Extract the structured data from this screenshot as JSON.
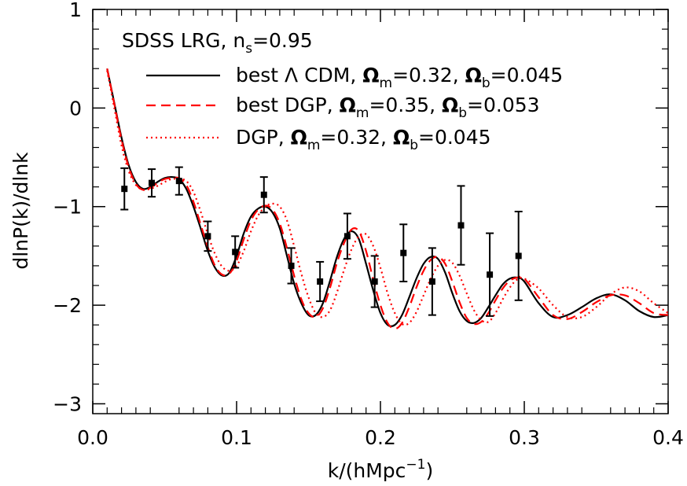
{
  "chart_data": {
    "type": "line",
    "title": "",
    "xlabel": "k/(hMpc⁻¹)",
    "xlabel_parts": {
      "base": "k/(hMpc",
      "sup": "−1",
      "close": ")"
    },
    "ylabel": "dlnP(k)/dlnk",
    "xlim": [
      0.0,
      0.4
    ],
    "ylim": [
      -3.1,
      1.0
    ],
    "xticks": [
      0.0,
      0.1,
      0.2,
      0.3,
      0.4
    ],
    "xtick_labels": [
      "0.0",
      "0.1",
      "0.2",
      "0.3",
      "0.4"
    ],
    "yticks": [
      -3,
      -2,
      -1,
      0,
      1
    ],
    "ytick_labels": [
      "−3",
      "−2",
      "−1",
      "0",
      "1"
    ],
    "grid": false,
    "legend_position": "top-right",
    "annotation": {
      "text": "SDSS LRG, n",
      "sub": "s",
      "rest": "=0.95"
    },
    "legend": [
      {
        "prefix": "best Λ CDM, ",
        "om_label": "Ω",
        "om_sub": "m",
        "om_val": "=0.32, ",
        "ob_label": "Ω",
        "ob_sub": "b",
        "ob_val": "=0.045"
      },
      {
        "prefix": "best DGP, ",
        "om_label": "Ω",
        "om_sub": "m",
        "om_val": "=0.35, ",
        "ob_label": "Ω",
        "ob_sub": "b",
        "ob_val": "=0.053"
      },
      {
        "prefix": "DGP, ",
        "om_label": "Ω",
        "om_sub": "m",
        "om_val": "=0.32, ",
        "ob_label": "Ω",
        "ob_sub": "b",
        "ob_val": "=0.045"
      }
    ],
    "series": [
      {
        "style": "solid",
        "color": "#000000",
        "x": [
          0.01,
          0.015,
          0.02,
          0.025,
          0.03,
          0.035,
          0.04,
          0.045,
          0.05,
          0.055,
          0.06,
          0.065,
          0.07,
          0.075,
          0.08,
          0.085,
          0.09,
          0.095,
          0.1,
          0.105,
          0.11,
          0.115,
          0.12,
          0.125,
          0.13,
          0.135,
          0.14,
          0.145,
          0.15,
          0.155,
          0.16,
          0.165,
          0.17,
          0.175,
          0.18,
          0.185,
          0.19,
          0.195,
          0.2,
          0.205,
          0.21,
          0.215,
          0.22,
          0.225,
          0.23,
          0.235,
          0.24,
          0.245,
          0.25,
          0.255,
          0.26,
          0.265,
          0.27,
          0.275,
          0.28,
          0.285,
          0.29,
          0.295,
          0.3,
          0.31,
          0.32,
          0.33,
          0.34,
          0.35,
          0.36,
          0.37,
          0.38,
          0.39,
          0.4
        ],
        "y": [
          0.4,
          0.05,
          -0.3,
          -0.58,
          -0.75,
          -0.82,
          -0.8,
          -0.75,
          -0.71,
          -0.7,
          -0.72,
          -0.82,
          -1.0,
          -1.22,
          -1.45,
          -1.62,
          -1.7,
          -1.67,
          -1.5,
          -1.27,
          -1.1,
          -1.02,
          -1.0,
          -1.06,
          -1.22,
          -1.5,
          -1.78,
          -1.98,
          -2.1,
          -2.1,
          -1.98,
          -1.75,
          -1.5,
          -1.32,
          -1.25,
          -1.33,
          -1.58,
          -1.85,
          -2.08,
          -2.2,
          -2.2,
          -2.1,
          -1.92,
          -1.73,
          -1.58,
          -1.51,
          -1.53,
          -1.67,
          -1.88,
          -2.06,
          -2.16,
          -2.18,
          -2.13,
          -2.02,
          -1.9,
          -1.79,
          -1.73,
          -1.72,
          -1.76,
          -1.98,
          -2.12,
          -2.1,
          -2.02,
          -1.93,
          -1.89,
          -1.95,
          -2.06,
          -2.12,
          -2.1
        ]
      },
      {
        "style": "dashed",
        "color": "#ff0000",
        "x": [
          0.01,
          0.015,
          0.02,
          0.025,
          0.03,
          0.035,
          0.04,
          0.045,
          0.05,
          0.055,
          0.06,
          0.065,
          0.07,
          0.075,
          0.08,
          0.085,
          0.09,
          0.095,
          0.1,
          0.105,
          0.11,
          0.115,
          0.12,
          0.125,
          0.13,
          0.135,
          0.14,
          0.145,
          0.15,
          0.155,
          0.16,
          0.165,
          0.17,
          0.175,
          0.18,
          0.185,
          0.19,
          0.195,
          0.2,
          0.205,
          0.21,
          0.215,
          0.22,
          0.225,
          0.23,
          0.235,
          0.24,
          0.245,
          0.25,
          0.255,
          0.26,
          0.265,
          0.27,
          0.275,
          0.28,
          0.285,
          0.29,
          0.295,
          0.3,
          0.31,
          0.32,
          0.33,
          0.34,
          0.35,
          0.36,
          0.37,
          0.38,
          0.39,
          0.4
        ],
        "y": [
          0.4,
          0.04,
          -0.32,
          -0.6,
          -0.77,
          -0.83,
          -0.81,
          -0.76,
          -0.72,
          -0.71,
          -0.71,
          -0.78,
          -0.95,
          -1.18,
          -1.41,
          -1.6,
          -1.69,
          -1.68,
          -1.55,
          -1.33,
          -1.14,
          -1.03,
          -0.99,
          -1.03,
          -1.17,
          -1.42,
          -1.7,
          -1.94,
          -2.08,
          -2.12,
          -2.03,
          -1.82,
          -1.56,
          -1.36,
          -1.23,
          -1.25,
          -1.45,
          -1.74,
          -2.0,
          -2.18,
          -2.24,
          -2.18,
          -2.02,
          -1.82,
          -1.65,
          -1.54,
          -1.51,
          -1.58,
          -1.76,
          -1.97,
          -2.13,
          -2.19,
          -2.17,
          -2.08,
          -1.95,
          -1.83,
          -1.75,
          -1.72,
          -1.73,
          -1.92,
          -2.1,
          -2.14,
          -2.07,
          -1.97,
          -1.9,
          -1.9,
          -1.98,
          -2.08,
          -2.1
        ]
      },
      {
        "style": "dotted",
        "color": "#ff0000",
        "x": [
          0.01,
          0.015,
          0.02,
          0.025,
          0.03,
          0.035,
          0.04,
          0.045,
          0.05,
          0.055,
          0.06,
          0.065,
          0.07,
          0.075,
          0.08,
          0.085,
          0.09,
          0.095,
          0.1,
          0.105,
          0.11,
          0.115,
          0.12,
          0.125,
          0.13,
          0.135,
          0.14,
          0.145,
          0.15,
          0.155,
          0.16,
          0.165,
          0.17,
          0.175,
          0.18,
          0.185,
          0.19,
          0.195,
          0.2,
          0.205,
          0.21,
          0.215,
          0.22,
          0.225,
          0.23,
          0.235,
          0.24,
          0.245,
          0.25,
          0.255,
          0.26,
          0.265,
          0.27,
          0.275,
          0.28,
          0.285,
          0.29,
          0.295,
          0.3,
          0.31,
          0.32,
          0.33,
          0.34,
          0.35,
          0.36,
          0.37,
          0.38,
          0.39,
          0.4
        ],
        "y": [
          0.38,
          0.0,
          -0.38,
          -0.64,
          -0.78,
          -0.83,
          -0.82,
          -0.79,
          -0.75,
          -0.72,
          -0.72,
          -0.74,
          -0.85,
          -1.05,
          -1.28,
          -1.48,
          -1.61,
          -1.65,
          -1.6,
          -1.45,
          -1.25,
          -1.09,
          -1.0,
          -0.97,
          -1.0,
          -1.14,
          -1.4,
          -1.68,
          -1.92,
          -2.08,
          -2.12,
          -2.05,
          -1.86,
          -1.63,
          -1.43,
          -1.3,
          -1.28,
          -1.4,
          -1.62,
          -1.88,
          -2.08,
          -2.19,
          -2.18,
          -2.07,
          -1.9,
          -1.73,
          -1.6,
          -1.54,
          -1.57,
          -1.7,
          -1.88,
          -2.05,
          -2.15,
          -2.17,
          -2.08,
          -1.94,
          -1.82,
          -1.74,
          -1.73,
          -1.83,
          -2.0,
          -2.12,
          -2.12,
          -2.02,
          -1.89,
          -1.82,
          -1.86,
          -1.98,
          -2.08
        ]
      }
    ],
    "points": {
      "x": [
        0.022,
        0.041,
        0.06,
        0.08,
        0.099,
        0.119,
        0.138,
        0.158,
        0.177,
        0.196,
        0.216,
        0.236,
        0.256,
        0.276,
        0.296
      ],
      "y": [
        -0.82,
        -0.76,
        -0.74,
        -1.3,
        -1.46,
        -0.88,
        -1.6,
        -1.76,
        -1.3,
        -1.76,
        -1.47,
        -1.76,
        -1.19,
        -1.69,
        -1.5
      ],
      "err": [
        0.21,
        0.14,
        0.14,
        0.15,
        0.16,
        0.18,
        0.18,
        0.2,
        0.23,
        0.26,
        0.29,
        0.34,
        0.4,
        0.42,
        0.45
      ]
    }
  }
}
